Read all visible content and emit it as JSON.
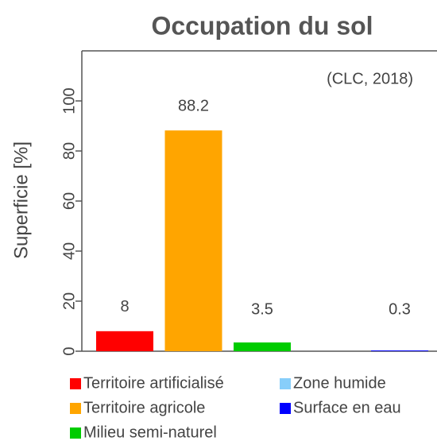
{
  "chart_data": {
    "type": "bar",
    "title": "Occupation du sol",
    "subtitle": "(CLC, 2018)",
    "y_label": "Superficie [%]",
    "categories": [
      "Territoire artificialisé",
      "Territoire agricole",
      "Milieu semi-naturel",
      "Zone humide",
      "Surface en eau"
    ],
    "values": [
      8,
      88.2,
      3.5,
      0,
      0.3
    ],
    "value_labels": [
      "8",
      "88.2",
      "3.5",
      null,
      "0.3"
    ],
    "colors": [
      "#ff0000",
      "#ffa500",
      "#00cc00",
      "#87cefa",
      "#0000ff"
    ],
    "ylim": [
      0,
      120
    ],
    "yticks": [
      0,
      20,
      40,
      60,
      80,
      100
    ],
    "legend": "bottom"
  }
}
